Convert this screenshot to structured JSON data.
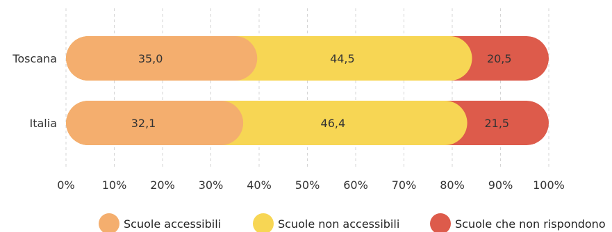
{
  "chart_data": {
    "type": "bar",
    "orientation": "horizontal",
    "stacked": true,
    "percent_stacked": true,
    "categories": [
      "Toscana",
      "Italia"
    ],
    "series": [
      {
        "name": "Scuole accessibili",
        "values": [
          35.0,
          32.1
        ],
        "labels": [
          "35,0",
          "32,1"
        ],
        "color": "#F4AE6E"
      },
      {
        "name": "Scuole non accessibili",
        "values": [
          44.5,
          46.4
        ],
        "labels": [
          "44,5",
          "46,4"
        ],
        "color": "#F7D654"
      },
      {
        "name": "Scuole che non rispondono",
        "values": [
          20.5,
          21.5
        ],
        "labels": [
          "20,5",
          "21,5"
        ],
        "color": "#DD5B4B"
      }
    ],
    "xlim": [
      0,
      100
    ],
    "x_ticks": [
      "0%",
      "10%",
      "20%",
      "30%",
      "40%",
      "50%",
      "60%",
      "70%",
      "80%",
      "90%",
      "100%"
    ],
    "grid": true,
    "legend_position": "bottom",
    "title": "",
    "xlabel": "",
    "ylabel": ""
  }
}
